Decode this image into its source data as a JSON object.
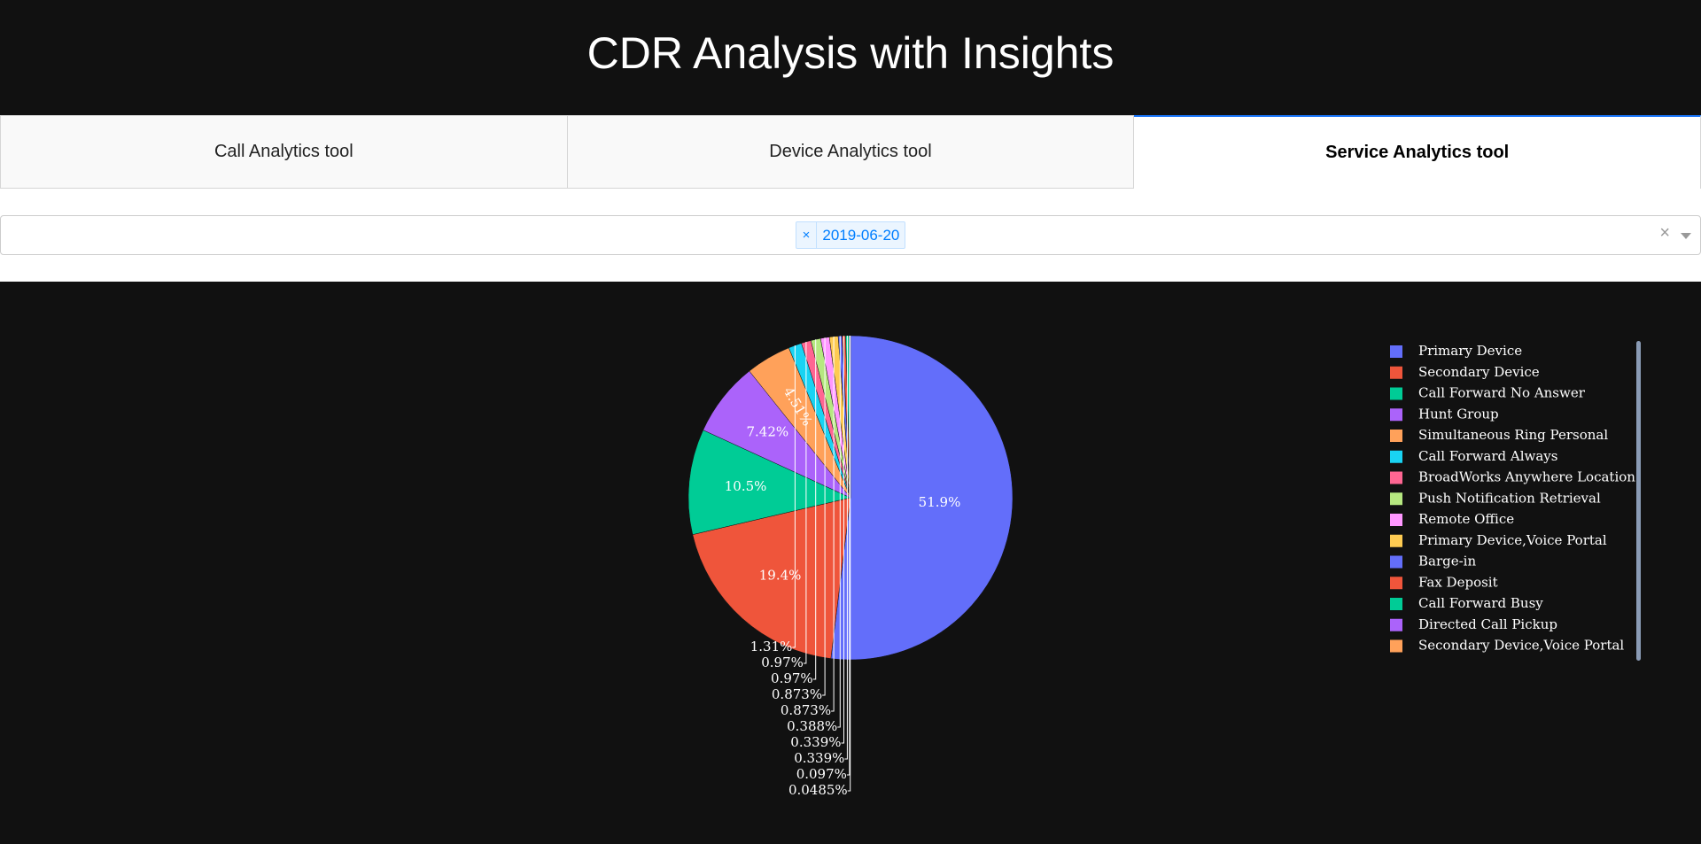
{
  "header": {
    "title": "CDR Analysis with Insights"
  },
  "tabs": [
    {
      "label": "Call Analytics tool"
    },
    {
      "label": "Device Analytics tool"
    },
    {
      "label": "Service Analytics tool"
    }
  ],
  "date_filter": {
    "selected_value": "2019-06-20",
    "remove_glyph": "×",
    "clear_glyph": "×"
  },
  "chart_data": {
    "type": "pie",
    "direction": "clockwise",
    "sort": "descending",
    "title": "",
    "legend_placement": "top-right",
    "background": "#111111",
    "colors": [
      "#636efa",
      "#ef553b",
      "#00cc96",
      "#ab63fa",
      "#ffa15a",
      "#19d3f3",
      "#ff6692",
      "#b6e880",
      "#ff97ff",
      "#fecb52"
    ],
    "slices": [
      {
        "label": "Primary Device",
        "percent": 51.9,
        "text": "51.9%"
      },
      {
        "label": "Secondary Device",
        "percent": 19.4,
        "text": "19.4%"
      },
      {
        "label": "Call Forward No Answer",
        "percent": 10.5,
        "text": "10.5%"
      },
      {
        "label": "Hunt Group",
        "percent": 7.42,
        "text": "7.42%"
      },
      {
        "label": "Simultaneous Ring Personal",
        "percent": 4.51,
        "text": "4.51%"
      },
      {
        "label": "Call Forward Always",
        "percent": 1.31,
        "text": "1.31%"
      },
      {
        "label": "BroadWorks Anywhere Location",
        "percent": 0.97,
        "text": "0.97%"
      },
      {
        "label": "Push Notification Retrieval",
        "percent": 0.97,
        "text": "0.97%"
      },
      {
        "label": "Remote Office",
        "percent": 0.873,
        "text": "0.873%"
      },
      {
        "label": "Primary Device,Voice Portal",
        "percent": 0.873,
        "text": "0.873%"
      },
      {
        "label": "Barge-in",
        "percent": 0.388,
        "text": "0.388%"
      },
      {
        "label": "Fax Deposit",
        "percent": 0.339,
        "text": "0.339%"
      },
      {
        "label": "Call Forward Busy",
        "percent": 0.339,
        "text": "0.339%"
      },
      {
        "label": "Directed Call Pickup",
        "percent": 0.097,
        "text": "0.097%"
      },
      {
        "label": "Secondary Device,Voice Portal",
        "percent": 0.0485,
        "text": "0.0485%"
      }
    ]
  }
}
